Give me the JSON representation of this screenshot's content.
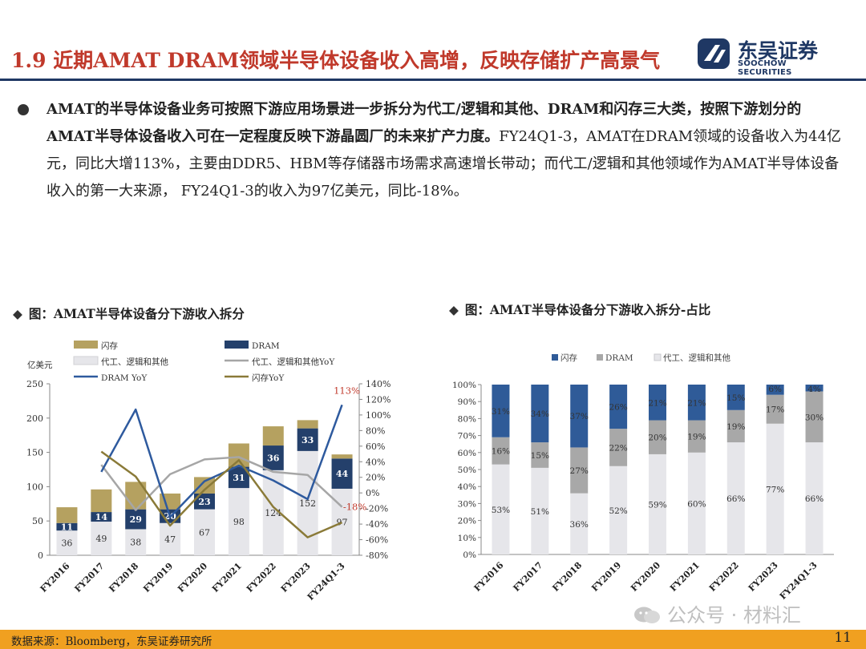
{
  "header": {
    "title": "1.9 近期AMAT DRAM领域半导体设备收入高增，反映存储扩产高景气",
    "logo_name": "东吴证券",
    "logo_sub": "SOOCHOW SECURITIES"
  },
  "body": {
    "bold": "AMAT的半导体设备业务可按照下游应用场景进一步拆分为代工/逻辑和其他、DRAM和闪存三大类，按照下游划分的AMAT半导体设备收入可在一定程度反映下游晶圆厂的未来扩产力度。",
    "normal": "FY24Q1-3，AMAT在DRAM领域的设备收入为44亿元，同比大增113%，主要由DDR5、HBM等存储器市场需求高速增长带动；而代工/逻辑和其他领域作为AMAT半导体设备收入的第一大来源， FY24Q1-3的收入为97亿美元，同比-18%。"
  },
  "captions": {
    "left": "图：AMAT半导体设备分下游收入拆分",
    "right": "图：AMAT半导体设备分下游收入拆分-占比",
    "marker": "◆"
  },
  "colors": {
    "flash": "#b5a160",
    "dram": "#24406b",
    "foundry": "#e6e6ea",
    "foundry_yoy": "#a6a6a6",
    "dram_yoy": "#2e5a9e",
    "flash_yoy": "#8a7a38",
    "share_flash": "#2f5b98",
    "share_dram": "#a8a8a8",
    "share_foundry": "#e6e6ea",
    "title_red": "#c0392b",
    "accent_navy": "#1f3864"
  },
  "chart_data": [
    {
      "type": "bar",
      "stacked": true,
      "title": "AMAT半导体设备分下游收入拆分",
      "unit_label": "亿美元",
      "categories": [
        "FY2016",
        "FY2017",
        "FY2018",
        "FY2019",
        "FY2020",
        "FY2021",
        "FY2022",
        "FY2023",
        "FY24Q1-3"
      ],
      "series": [
        {
          "name": "代工、逻辑和其他",
          "values": [
            36,
            49,
            38,
            47,
            67,
            98,
            124,
            152,
            97
          ]
        },
        {
          "name": "DRAM",
          "values": [
            11,
            14,
            29,
            20,
            23,
            31,
            36,
            33,
            44
          ]
        },
        {
          "name": "闪存",
          "values": [
            23,
            33,
            40,
            23,
            24,
            34,
            28,
            12,
            6
          ]
        }
      ],
      "line_series": [
        {
          "name": "代工、逻辑和其他YoY",
          "axis": "right",
          "values": [
            null,
            36,
            -22,
            24,
            43,
            46,
            27,
            23,
            -18
          ]
        },
        {
          "name": "DRAM YoY",
          "axis": "right",
          "values": [
            null,
            27,
            107,
            -31,
            15,
            35,
            16,
            -8,
            113
          ]
        },
        {
          "name": "闪存YoY",
          "axis": "right",
          "values": [
            null,
            53,
            21,
            -42,
            4,
            42,
            -18,
            -57,
            -38
          ]
        }
      ],
      "ylim": [
        0,
        250
      ],
      "yticks": [
        0,
        50,
        100,
        150,
        200,
        250
      ],
      "y2lim": [
        -80,
        140
      ],
      "y2ticks": [
        "-80%",
        "-60%",
        "-40%",
        "-20%",
        "0%",
        "20%",
        "40%",
        "60%",
        "80%",
        "100%",
        "120%",
        "140%"
      ],
      "annotations": [
        {
          "text": "113%",
          "color": "#c0392b"
        },
        {
          "text": "-18%",
          "color": "#c0392b"
        }
      ],
      "legend": [
        "闪存",
        "DRAM",
        "代工、逻辑和其他",
        "代工、逻辑和其他YoY",
        "DRAM YoY",
        "闪存YoY"
      ]
    },
    {
      "type": "bar",
      "stacked": true,
      "percent": true,
      "title": "AMAT半导体设备分下游收入拆分-占比",
      "categories": [
        "FY2016",
        "FY2017",
        "FY2018",
        "FY2019",
        "FY2020",
        "FY2021",
        "FY2022",
        "FY2023",
        "FY24Q1-3"
      ],
      "series": [
        {
          "name": "代工、逻辑和其他",
          "values": [
            53,
            51,
            36,
            52,
            59,
            60,
            66,
            77,
            66
          ],
          "labels": [
            "53%",
            "51%",
            "36%",
            "52%",
            "59%",
            "60%",
            "66%",
            "77%",
            "66%"
          ]
        },
        {
          "name": "DRAM",
          "values": [
            16,
            15,
            27,
            22,
            20,
            19,
            19,
            17,
            30
          ],
          "labels": [
            "16%",
            "15%",
            "27%",
            "22%",
            "20%",
            "19%",
            "19%",
            "17%",
            "30%"
          ]
        },
        {
          "name": "闪存",
          "values": [
            31,
            34,
            37,
            26,
            21,
            21,
            15,
            6,
            4
          ],
          "labels": [
            "31%",
            "34%",
            "37%",
            "26%",
            "21%",
            "21%",
            "15%",
            "6%",
            "4%"
          ]
        }
      ],
      "ylim": [
        0,
        100
      ],
      "yticks": [
        "0%",
        "10%",
        "20%",
        "30%",
        "40%",
        "50%",
        "60%",
        "70%",
        "80%",
        "90%",
        "100%"
      ],
      "legend": [
        "闪存",
        "DRAM",
        "代工、逻辑和其他"
      ]
    }
  ],
  "footer": {
    "source": "数据来源：Bloomberg，东吴证券研究所",
    "watermark": "公众号 · 材料汇",
    "page": "11"
  }
}
